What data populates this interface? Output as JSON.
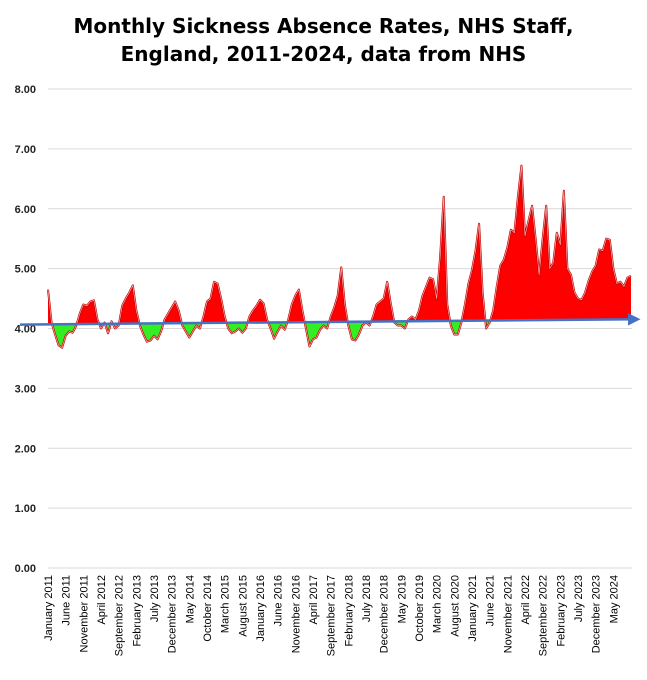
{
  "chart_data": {
    "type": "area",
    "title": "Monthly Sickness Absence Rates, NHS Staff, England, 2011-2024, data from NHS",
    "title_lines": [
      "Monthly Sickness Absence Rates, NHS Staff,",
      "England, 2011-2024, data from NHS"
    ],
    "xlabel": "",
    "ylabel": "",
    "ylim": [
      0,
      8
    ],
    "yticks": [
      "0.00",
      "1.00",
      "2.00",
      "3.00",
      "4.00",
      "5.00",
      "6.00",
      "7.00",
      "8.00"
    ],
    "grid": true,
    "legend": "none",
    "x_range": [
      "January 2011",
      "May 2024"
    ],
    "x_tick_labels": [
      "January 2011",
      "June 2011",
      "November 2011",
      "April 2012",
      "September 2012",
      "February 2013",
      "July 2013",
      "December 2013",
      "May 2014",
      "October 2014",
      "March 2015",
      "August 2015",
      "January 2016",
      "June 2016",
      "November 2016",
      "April 2017",
      "September 2017",
      "February 2018",
      "July 2018",
      "December 2018",
      "May 2019",
      "October 2019",
      "March 2020",
      "August 2020",
      "January 2021",
      "June 2021",
      "November 2021",
      "April 2022",
      "September 2022",
      "February 2023",
      "July 2023",
      "December 2023",
      "May 2024"
    ],
    "series": [
      {
        "values": [
          4.65,
          4.1,
          3.9,
          3.72,
          3.68,
          3.88,
          3.95,
          3.93,
          4.05,
          4.25,
          4.4,
          4.38,
          4.45,
          4.47,
          4.15,
          4.0,
          4.1,
          3.92,
          4.12,
          4.0,
          4.05,
          4.38,
          4.5,
          4.6,
          4.72,
          4.3,
          4.05,
          3.9,
          3.78,
          3.8,
          3.88,
          3.82,
          3.95,
          4.15,
          4.25,
          4.35,
          4.45,
          4.3,
          4.05,
          3.95,
          3.85,
          3.95,
          4.05,
          4.0,
          4.2,
          4.45,
          4.5,
          4.78,
          4.75,
          4.5,
          4.2,
          4.0,
          3.92,
          3.95,
          4.0,
          3.93,
          4.0,
          4.2,
          4.3,
          4.38,
          4.48,
          4.42,
          4.15,
          4.0,
          3.83,
          3.95,
          4.05,
          3.98,
          4.15,
          4.4,
          4.55,
          4.65,
          4.3,
          4.0,
          3.7,
          3.82,
          3.85,
          3.98,
          4.05,
          4.0,
          4.2,
          4.35,
          4.55,
          5.02,
          4.4,
          4.05,
          3.82,
          3.8,
          3.9,
          4.05,
          4.1,
          4.05,
          4.2,
          4.4,
          4.45,
          4.5,
          4.78,
          4.42,
          4.1,
          4.05,
          4.05,
          4.0,
          4.15,
          4.2,
          4.15,
          4.3,
          4.55,
          4.7,
          4.85,
          4.82,
          4.5,
          5.2,
          6.2,
          4.4,
          4.05,
          3.9,
          3.9,
          4.1,
          4.4,
          4.75,
          4.98,
          5.3,
          5.75,
          4.6,
          4.0,
          4.1,
          4.3,
          4.7,
          5.05,
          5.15,
          5.35,
          5.65,
          5.6,
          6.2,
          6.72,
          5.55,
          5.8,
          6.05,
          5.5,
          4.9,
          5.5,
          6.05,
          5.0,
          5.1,
          5.6,
          5.4,
          6.3,
          5.0,
          4.9,
          4.6,
          4.5,
          4.48,
          4.6,
          4.8,
          4.95,
          5.05,
          5.32,
          5.3,
          5.5,
          5.48,
          5.0,
          4.75,
          4.78,
          4.7,
          4.85,
          4.88
        ]
      },
      {
        "type": "trend",
        "values": [
          4.07,
          4.15
        ]
      }
    ],
    "colors": {
      "above": "#ff0000",
      "below": "#33ee22",
      "line": "#c00000",
      "trend": "#4472c4"
    }
  }
}
